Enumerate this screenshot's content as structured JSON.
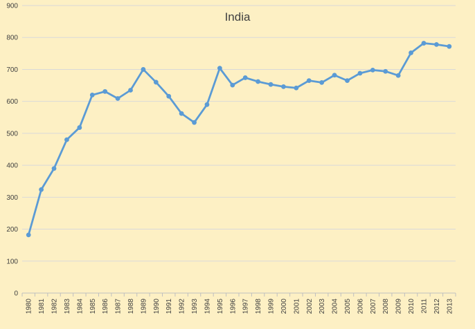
{
  "colors": {
    "background": "#fdf0c4",
    "gridline": "#d9d9d9",
    "axis": "#bfbfbf",
    "line": "#5b9bd5",
    "text": "#404040"
  },
  "chart_data": {
    "type": "line",
    "title": "India",
    "xlabel": "",
    "ylabel": "",
    "ylim": [
      0,
      900
    ],
    "yticks": [
      "0",
      "100",
      "200",
      "300",
      "400",
      "500",
      "600",
      "700",
      "800",
      "900"
    ],
    "grid": true,
    "legend": "none",
    "categories": [
      "1980",
      "1981",
      "1982",
      "1983",
      "1984",
      "1985",
      "1986",
      "1987",
      "1988",
      "1989",
      "1990",
      "1991",
      "1992",
      "1993",
      "1994",
      "1995",
      "1996",
      "1997",
      "1998",
      "1999",
      "2000",
      "2001",
      "2002",
      "2003",
      "2004",
      "2005",
      "2006",
      "2007",
      "2008",
      "2009",
      "2010",
      "2011",
      "2012",
      "2013"
    ],
    "series": [
      {
        "values": [
          182,
          324,
          390,
          480,
          518,
          620,
          631,
          609,
          635,
          700,
          660,
          616,
          562,
          534,
          590,
          704,
          651,
          674,
          662,
          653,
          646,
          642,
          665,
          659,
          682,
          665,
          688,
          698,
          694,
          681,
          752,
          782,
          778,
          772
        ]
      }
    ]
  }
}
